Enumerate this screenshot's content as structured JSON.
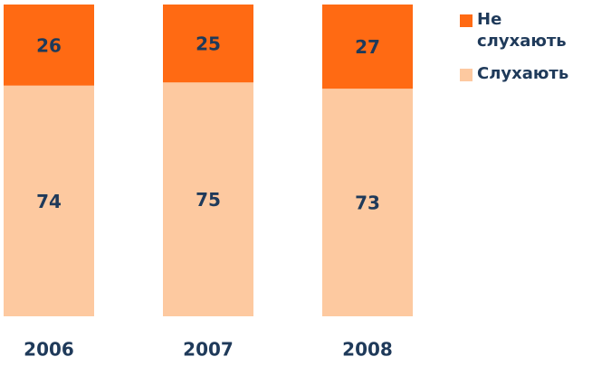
{
  "chart_data": {
    "type": "stacked_bar",
    "categories": [
      "2006",
      "2007",
      "2008"
    ],
    "series": [
      {
        "name": "Слухають",
        "color": "#fdc9a0",
        "values": [
          74,
          75,
          73
        ]
      },
      {
        "name": "Не слухають",
        "color": "#ff6a13",
        "values": [
          26,
          25,
          27
        ]
      }
    ],
    "ylim": [
      0,
      100
    ],
    "legend": "right"
  }
}
